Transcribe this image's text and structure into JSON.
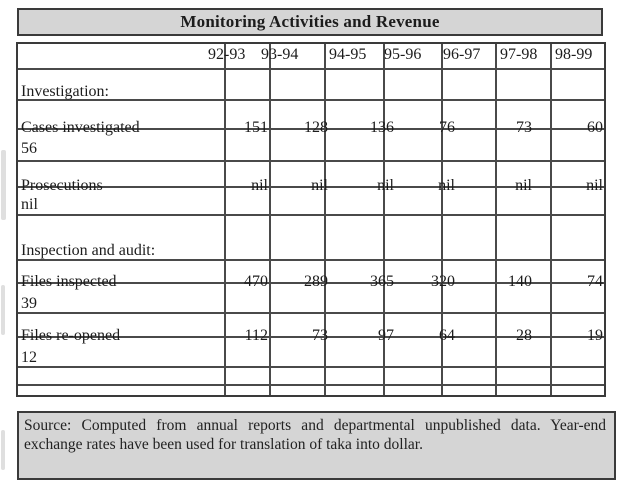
{
  "title": "Monitoring Activities and Revenue",
  "table": {
    "year_headers": [
      "92-93",
      "93-94",
      "94-95",
      "95-96",
      "96-97",
      "97-98",
      "98-99"
    ],
    "rows": [
      {
        "kind": "section",
        "label": "Investigation:"
      },
      {
        "kind": "data",
        "label": "Cases investigated",
        "values": [
          "151",
          "128",
          "136",
          "76",
          "73",
          "60"
        ],
        "wrapped_value": "56"
      },
      {
        "kind": "data",
        "label": "Prosecutions",
        "values": [
          "nil",
          "nil",
          "nil",
          "nil",
          "nil",
          "nil"
        ],
        "wrapped_value": "nil"
      },
      {
        "kind": "section",
        "label": "Inspection and audit:"
      },
      {
        "kind": "data",
        "label": "Files inspected",
        "values": [
          "470",
          "289",
          "365",
          "320",
          "140",
          "74"
        ],
        "wrapped_value": "39"
      },
      {
        "kind": "data",
        "label": "Files re-opened",
        "values": [
          "112",
          "73",
          "97",
          "64",
          "28",
          "19"
        ],
        "wrapped_value": "12"
      }
    ]
  },
  "source_note": "Source: Computed from annual reports and departmental unpublished data. Year-end exchange rates have been used for translation of taka into dollar.",
  "colors": {
    "panel_bg": "#d5d5d5",
    "border": "#3a3a3a",
    "grid_line": "#4a4a4a",
    "text": "#1c1c1c",
    "page_bg": "#ffffff"
  }
}
